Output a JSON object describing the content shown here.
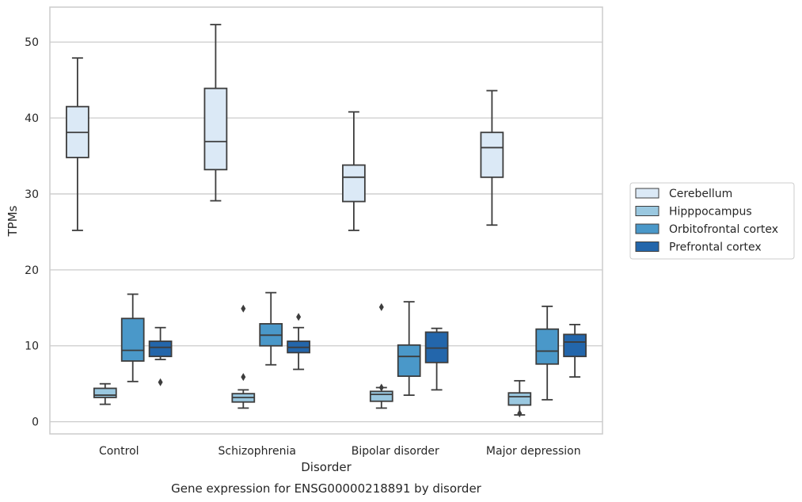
{
  "chart_data": {
    "type": "box",
    "caption": "Gene expression for ENSG00000218891 by disorder",
    "xlabel": "Disorder",
    "ylabel": "TPMs",
    "ylim": [
      -1.6,
      54.6
    ],
    "yticks": [
      0,
      10,
      20,
      30,
      40,
      50
    ],
    "grid": "horizontal",
    "legend_position": "right",
    "categories": [
      "Control",
      "Schizophrenia",
      "Bipolar disorder",
      "Major depression"
    ],
    "series": [
      {
        "name": "Cerebellum",
        "color": "#dbe9f6",
        "boxes": [
          {
            "whislo": 25.2,
            "q1": 34.8,
            "med": 38.1,
            "q3": 41.5,
            "whishi": 47.9,
            "fliers": []
          },
          {
            "whislo": 29.1,
            "q1": 33.2,
            "med": 36.9,
            "q3": 43.9,
            "whishi": 52.3,
            "fliers": []
          },
          {
            "whislo": 25.2,
            "q1": 29.0,
            "med": 32.2,
            "q3": 33.8,
            "whishi": 40.8,
            "fliers": []
          },
          {
            "whislo": 25.9,
            "q1": 32.2,
            "med": 36.1,
            "q3": 38.1,
            "whishi": 43.6,
            "fliers": []
          }
        ]
      },
      {
        "name": "Hipppocampus",
        "color": "#9ac8e0",
        "boxes": [
          {
            "whislo": 2.3,
            "q1": 3.2,
            "med": 3.5,
            "q3": 4.4,
            "whishi": 5.0,
            "fliers": []
          },
          {
            "whislo": 1.8,
            "q1": 2.6,
            "med": 3.2,
            "q3": 3.7,
            "whishi": 4.2,
            "fliers": [
              5.9,
              14.9
            ]
          },
          {
            "whislo": 1.8,
            "q1": 2.7,
            "med": 3.6,
            "q3": 4.0,
            "whishi": 4.5,
            "fliers": [
              4.5,
              15.1
            ]
          },
          {
            "whislo": 0.9,
            "q1": 2.2,
            "med": 3.3,
            "q3": 3.8,
            "whishi": 5.4,
            "fliers": [
              1.1
            ]
          }
        ]
      },
      {
        "name": "Orbitofrontal cortex",
        "color": "#4a98c9",
        "boxes": [
          {
            "whislo": 5.3,
            "q1": 8.0,
            "med": 9.4,
            "q3": 13.6,
            "whishi": 16.8,
            "fliers": []
          },
          {
            "whislo": 7.5,
            "q1": 10.0,
            "med": 11.4,
            "q3": 12.9,
            "whishi": 17.0,
            "fliers": []
          },
          {
            "whislo": 3.5,
            "q1": 6.0,
            "med": 8.6,
            "q3": 10.1,
            "whishi": 15.8,
            "fliers": []
          },
          {
            "whislo": 2.9,
            "q1": 7.6,
            "med": 9.3,
            "q3": 12.2,
            "whishi": 15.2,
            "fliers": []
          }
        ]
      },
      {
        "name": "Prefrontal cortex",
        "color": "#2366ab",
        "boxes": [
          {
            "whislo": 8.2,
            "q1": 8.6,
            "med": 9.8,
            "q3": 10.6,
            "whishi": 12.4,
            "fliers": [
              5.2
            ]
          },
          {
            "whislo": 6.9,
            "q1": 9.1,
            "med": 9.8,
            "q3": 10.6,
            "whishi": 12.4,
            "fliers": [
              13.8
            ]
          },
          {
            "whislo": 4.2,
            "q1": 7.8,
            "med": 9.7,
            "q3": 11.8,
            "whishi": 12.3,
            "fliers": []
          },
          {
            "whislo": 5.9,
            "q1": 8.6,
            "med": 10.5,
            "q3": 11.5,
            "whishi": 12.8,
            "fliers": []
          }
        ]
      }
    ]
  }
}
